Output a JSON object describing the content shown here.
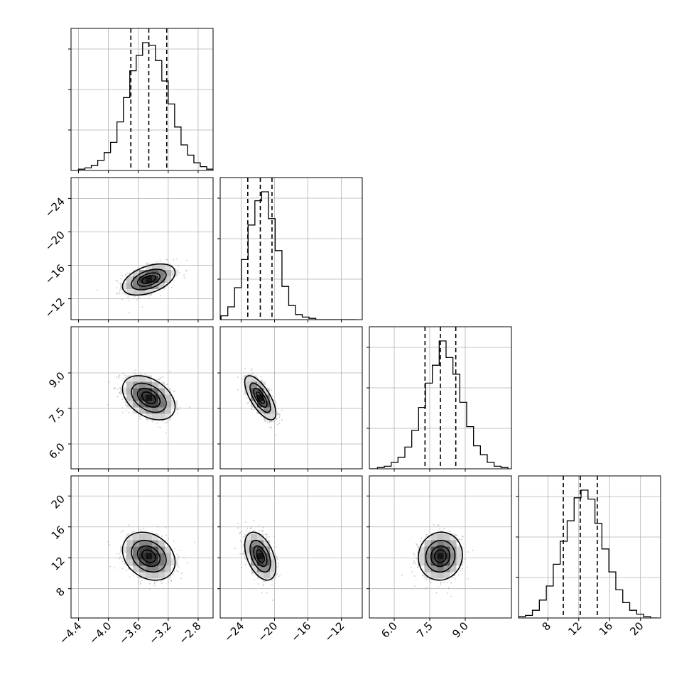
{
  "chart_data": {
    "type": "corner",
    "n_params": 4,
    "params": [
      {
        "x_ticks": [
          "−4.4",
          "−4.0",
          "−3.6",
          "−3.2",
          "−2.8"
        ],
        "x_tick_values": [
          -4.4,
          -4.0,
          -3.6,
          -3.2,
          -2.8
        ],
        "range": [
          -4.5,
          -2.6
        ],
        "quantiles": [
          -3.7,
          -3.46,
          -3.22
        ],
        "mean": -3.46,
        "sd": 0.17
      },
      {
        "x_ticks": [
          "−24",
          "−20",
          "−16",
          "−12"
        ],
        "y_ticks": [
          "−12",
          "−16",
          "−20",
          "−24"
        ],
        "tick_values": [
          -24,
          -20,
          -16,
          -12
        ],
        "range": [
          -26.5,
          -9.5
        ],
        "quantiles": [
          -23.2,
          -21.7,
          -20.3
        ],
        "mean": -21.7,
        "sd": 0.9
      },
      {
        "x_ticks": [
          "6.0",
          "7.5",
          "9.0"
        ],
        "y_ticks": [
          "6.0",
          "7.5",
          "9.0"
        ],
        "tick_values": [
          6.0,
          7.5,
          9.0
        ],
        "range": [
          4.95,
          10.95
        ],
        "quantiles": [
          7.3,
          7.95,
          8.6
        ],
        "mean": 7.95,
        "sd": 0.45
      },
      {
        "x_ticks": [
          "8",
          "12",
          "16",
          "20"
        ],
        "y_ticks": [
          "8",
          "12",
          "16",
          "20"
        ],
        "tick_values": [
          8,
          12,
          16,
          20
        ],
        "range": [
          4.2,
          22.6
        ],
        "quantiles": [
          10.0,
          12.2,
          14.4
        ],
        "mean": 12.2,
        "sd": 1.5
      }
    ],
    "histograms": [
      {
        "param": 0,
        "bin_range": [
          -4.4,
          -2.6
        ],
        "counts": [
          1,
          2,
          4,
          8,
          14,
          22,
          38,
          57,
          78,
          90,
          100,
          98,
          86,
          70,
          52,
          34,
          20,
          12,
          6,
          3,
          1
        ]
      },
      {
        "param": 1,
        "bin_range": [
          -26.4,
          -10.2
        ],
        "counts": [
          3,
          10,
          25,
          47,
          74,
          93,
          100,
          79,
          54,
          26,
          11,
          4,
          2,
          1,
          0,
          0,
          0,
          0,
          0,
          0
        ]
      },
      {
        "param": 2,
        "bin_range": [
          5.0,
          10.8
        ],
        "counts": [
          0,
          1,
          2,
          5,
          9,
          17,
          30,
          48,
          67,
          81,
          100,
          87,
          74,
          52,
          33,
          18,
          11,
          5,
          2,
          1
        ]
      },
      {
        "param": 3,
        "bin_range": [
          4.2,
          22.2
        ],
        "counts": [
          1,
          2,
          6,
          14,
          25,
          42,
          60,
          76,
          94,
          100,
          93,
          74,
          54,
          36,
          22,
          12,
          6,
          3,
          1,
          0
        ]
      }
    ],
    "correlations": [
      {
        "x_param": 0,
        "y_param": 1,
        "rho": 0.45
      },
      {
        "x_param": 0,
        "y_param": 2,
        "rho": -0.4
      },
      {
        "x_param": 1,
        "y_param": 2,
        "rho": -0.7
      },
      {
        "x_param": 0,
        "y_param": 3,
        "rho": -0.25
      },
      {
        "x_param": 1,
        "y_param": 3,
        "rho": -0.45
      },
      {
        "x_param": 2,
        "y_param": 3,
        "rho": 0.05
      }
    ],
    "contour_levels_sigma": [
      0.5,
      1.0,
      1.5,
      2.0
    ],
    "histogram_style": "step",
    "quantile_lines": "dashed",
    "grid": true,
    "colors": {
      "line": "#000000",
      "grid": "#b0b0b0",
      "points": "#9a9a9a",
      "background": "#ffffff"
    }
  }
}
